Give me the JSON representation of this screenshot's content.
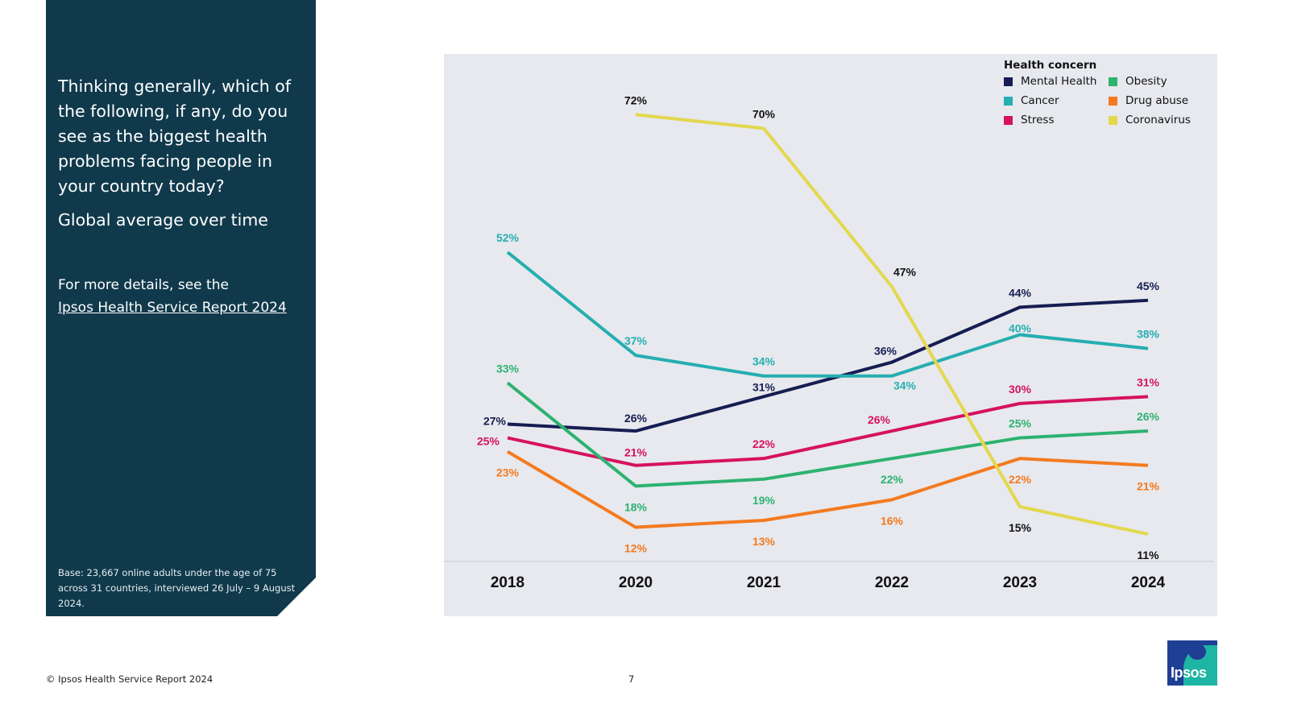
{
  "panel": {
    "question": "Thinking generally, which of the following, if any, do you see as the biggest health problems facing people in your country today?",
    "subtitle": "Global average over time",
    "details_prefix": "For more details, see the",
    "details_link": "Ipsos Health Service Report 2024",
    "base_note": "Base: 23,667 online adults under the age of 75 across 31 countries, interviewed 26 July – 9 August 2024."
  },
  "footer": {
    "copyright": "© Ipsos Health Service Report 2024",
    "page_number": "7",
    "logo_text": "Ipsos"
  },
  "colors": {
    "panel_bg": "#103a4c",
    "chart_bg": "#e7e9ee"
  },
  "chart_data": {
    "type": "line",
    "x": [
      "2018",
      "2020",
      "2021",
      "2022",
      "2023",
      "2024"
    ],
    "ylim": [
      0,
      80
    ],
    "legend_title": "Health concern",
    "legend_position": "top-right",
    "grid": false,
    "value_suffix": "%",
    "series": [
      {
        "name": "Mental Health",
        "color": "#161d52",
        "values": [
          27,
          26,
          31,
          36,
          44,
          45
        ]
      },
      {
        "name": "Cancer",
        "color": "#26aeb0",
        "values": [
          52,
          37,
          34,
          34,
          40,
          38
        ]
      },
      {
        "name": "Stress",
        "color": "#d6125f",
        "values": [
          25,
          21,
          22,
          26,
          30,
          31
        ]
      },
      {
        "name": "Obesity",
        "color": "#2db270",
        "values": [
          33,
          18,
          19,
          22,
          25,
          26
        ]
      },
      {
        "name": "Drug abuse",
        "color": "#f47a1f",
        "values": [
          23,
          12,
          13,
          16,
          22,
          21
        ]
      },
      {
        "name": "Coronavirus",
        "color": "#e3d84e",
        "values": [
          null,
          72,
          70,
          47,
          15,
          11
        ]
      }
    ]
  }
}
